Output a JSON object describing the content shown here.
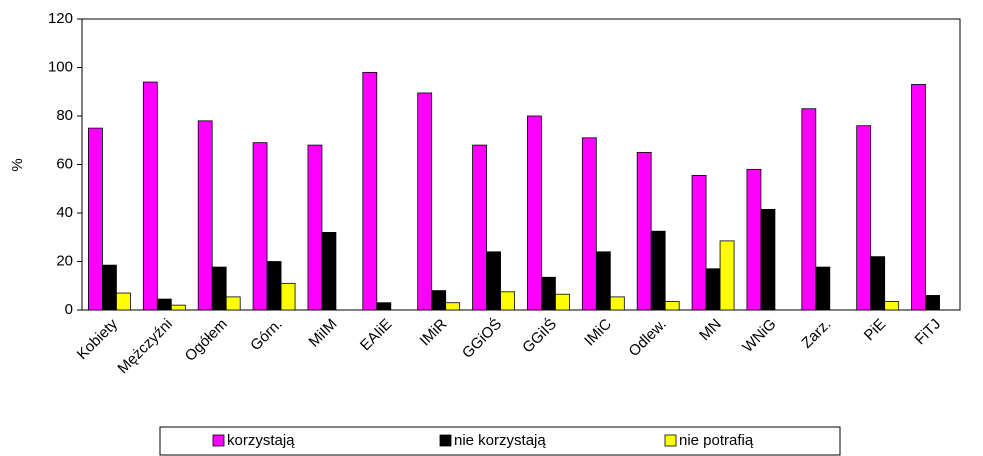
{
  "chart_data": {
    "type": "bar",
    "ylabel": "%",
    "categories": [
      "Kobiety",
      "Mężczyźni",
      "Ogółem",
      "Górn.",
      "MiIM",
      "EAIiE",
      "IMiR",
      "GGiOŚ",
      "GGiIŚ",
      "IMiC",
      "Odlew.",
      "MN",
      "WNiG",
      "Zarz.",
      "PiE",
      "FiTJ"
    ],
    "series": [
      {
        "name": "korzystają",
        "color": "#ff00ff",
        "values": [
          75,
          94,
          78,
          69,
          68,
          98,
          89.5,
          68,
          80,
          71,
          65,
          55.5,
          58,
          83,
          76,
          93
        ]
      },
      {
        "name": "nie korzystają",
        "color": "#000000",
        "values": [
          18.5,
          4.5,
          17.7,
          20,
          32,
          3,
          8,
          24,
          13.5,
          24,
          32.5,
          17,
          41.5,
          17.7,
          22,
          6
        ]
      },
      {
        "name": "nie potrafią",
        "color": "#ffff00",
        "values": [
          7,
          2,
          5.4,
          11,
          0,
          0,
          3,
          7.5,
          6.5,
          5.4,
          3.5,
          28.5,
          0,
          0,
          3.5,
          0
        ]
      }
    ],
    "ylim": [
      0,
      120
    ],
    "yticks": [
      0,
      20,
      40,
      60,
      80,
      100,
      120
    ],
    "legend": "bottom"
  }
}
